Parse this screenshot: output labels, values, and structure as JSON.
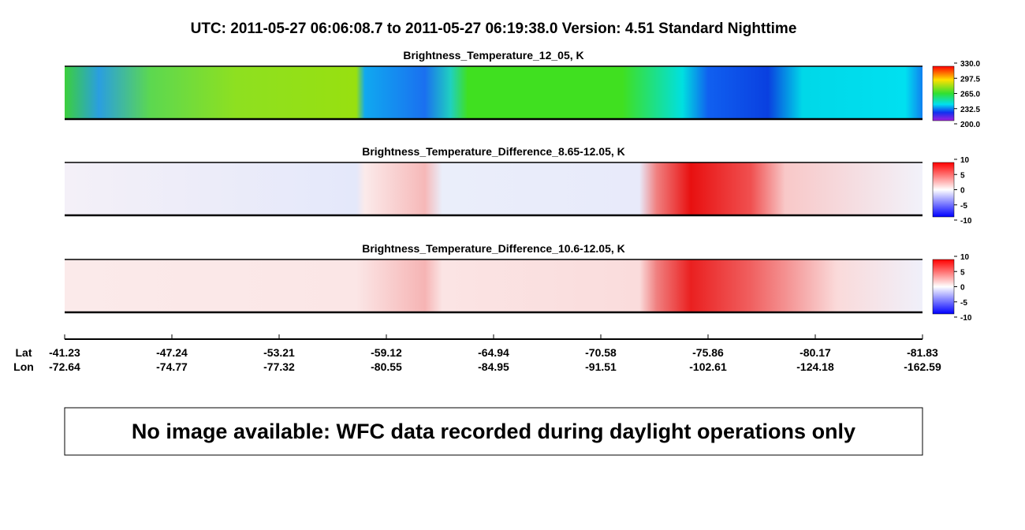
{
  "header": {
    "title": "UTC:  2011-05-27   06:06:08.7  to  2011-05-27   06:19:38.0    Version: 4.51  Standard Nighttime"
  },
  "panels": [
    {
      "title": "Brightness_Temperature_12_05, K",
      "colorbar": [
        "330.0",
        "297.5",
        "265.0",
        "232.5",
        "200.0"
      ]
    },
    {
      "title": "Brightness_Temperature_Difference_8.65-12.05, K",
      "colorbar": [
        "10",
        "5",
        "0",
        "-5",
        "-10"
      ]
    },
    {
      "title": "Brightness_Temperature_Difference_10.6-12.05, K",
      "colorbar": [
        "10",
        "5",
        "0",
        "-5",
        "-10"
      ]
    }
  ],
  "axis": {
    "lat_label": "Lat",
    "lon_label": "Lon",
    "ticks": [
      {
        "lat": "-41.23",
        "lon": "-72.64"
      },
      {
        "lat": "-47.24",
        "lon": "-74.77"
      },
      {
        "lat": "-53.21",
        "lon": "-77.32"
      },
      {
        "lat": "-59.12",
        "lon": "-80.55"
      },
      {
        "lat": "-64.94",
        "lon": "-84.95"
      },
      {
        "lat": "-70.58",
        "lon": "-91.51"
      },
      {
        "lat": "-75.86",
        "lon": "-102.61"
      },
      {
        "lat": "-80.17",
        "lon": "-124.18"
      },
      {
        "lat": "-81.83",
        "lon": "-162.59"
      }
    ]
  },
  "message": "No image available: WFC data recorded during daylight operations only"
}
